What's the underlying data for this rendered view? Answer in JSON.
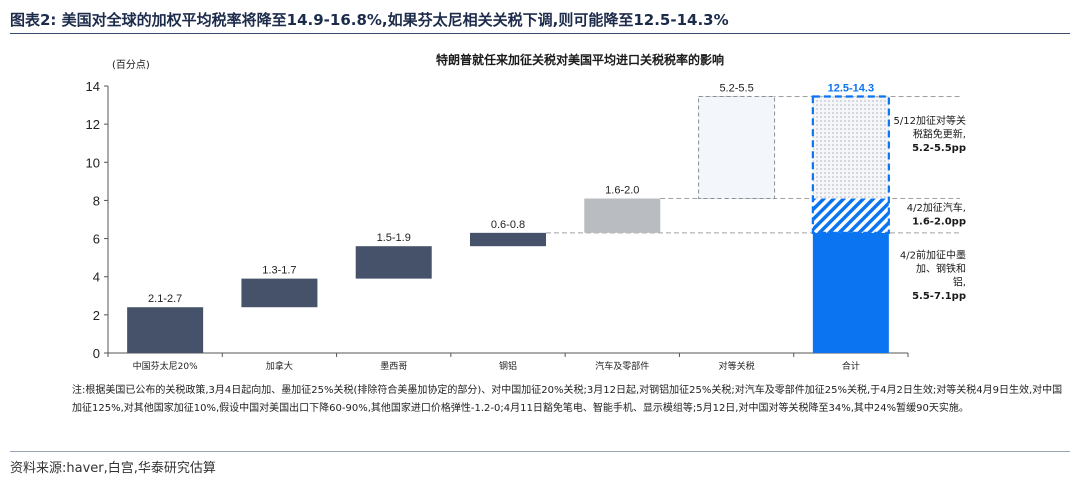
{
  "header": {
    "title": "图表2:  美国对全球的加权平均税率将降至14.9-16.8%,如果芬太尼相关关税下调,则可能降至12.5-14.3%"
  },
  "note": "注:根据美国已公布的关税政策,3月4日起向加、墨加征25%关税(排除符合美墨加协定的部分)、对中国加征20%关税;3月12日起,对钢铝加征25%关税;对汽车及零部件加征25%关税,于4月2日生效;对等关税4月9日生效,对中国加征125%,对其他国家加征10%,假设中国对美国出口下降60-90%,其他国家进口价格弹性-1.2-0;4月11日豁免笔电、智能手机、显示模组等;5月12日,对中国对等关税降至34%,其中24%暂缓90天实施。",
  "footer": {
    "source": "资料来源:haver,白宫,华泰研究估算"
  },
  "colors": {
    "dark": "#45526a",
    "light_gray": "#b9bcc1",
    "blue": "#0b74f0",
    "dash": "#a0a0a0"
  },
  "chart_data": {
    "type": "bar",
    "subtype": "waterfall",
    "title": "特朗普就任来加征关税对美国平均进口关税税率的影响",
    "ylabel": "(百分点)",
    "ylim": [
      0,
      14
    ],
    "yticks": [
      0,
      2,
      4,
      6,
      8,
      10,
      12,
      14
    ],
    "categories": [
      "中国芬太尼20%",
      "加拿大",
      "墨西哥",
      "钢铝",
      "汽车及零部件",
      "对等关税",
      "合计"
    ],
    "bars": [
      {
        "label": "2.1-2.7",
        "bottom": 0,
        "top": 2.4,
        "style": "dark"
      },
      {
        "label": "1.3-1.7",
        "bottom": 2.4,
        "top": 3.9,
        "style": "dark"
      },
      {
        "label": "1.5-1.9",
        "bottom": 3.9,
        "top": 5.6,
        "style": "dark"
      },
      {
        "label": "0.6-0.8",
        "bottom": 5.6,
        "top": 6.3,
        "style": "dark"
      },
      {
        "label": "1.6-2.0",
        "bottom": 6.3,
        "top": 8.1,
        "style": "gray"
      },
      {
        "label": "5.2-5.5",
        "bottom": 8.1,
        "top": 13.45,
        "style": "dashed-box"
      }
    ],
    "total": {
      "label": "12.5-14.3",
      "segments": [
        {
          "bottom": 0,
          "top": 6.3,
          "style": "solid-blue"
        },
        {
          "bottom": 6.3,
          "top": 8.1,
          "style": "hatched"
        },
        {
          "bottom": 8.1,
          "top": 13.45,
          "style": "dotted"
        }
      ]
    },
    "annotations": [
      {
        "lines": [
          "5/12加征对等关",
          "税豁免更新,",
          "5.2-5.5pp"
        ],
        "y": 11.5
      },
      {
        "lines": [
          "4/2加征汽车,",
          "1.6-2.0pp"
        ],
        "y": 7.3
      },
      {
        "lines": [
          "4/2前加征中墨",
          "加、钢铁和",
          "铝,",
          "5.5-7.1pp"
        ],
        "y": 4.1
      }
    ]
  }
}
